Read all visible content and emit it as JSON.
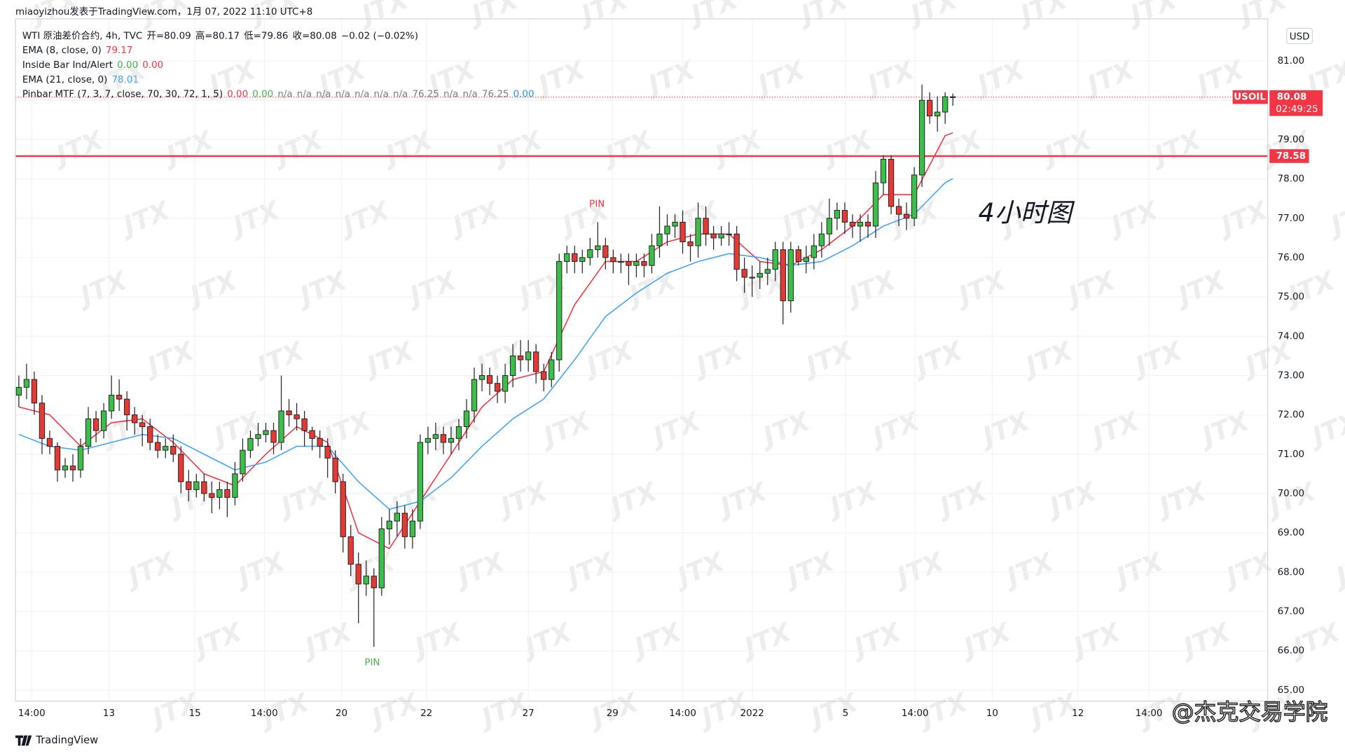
{
  "header": {
    "byline": "miaoyizhou发表于TradingView.com，1月 07, 2022 11:10 UTC+8",
    "footer": "TradingView",
    "watermark": "JTX",
    "credit": "@杰克交易学院"
  },
  "chart_data": {
    "type": "candlestick",
    "currency": "USD",
    "note": "4小时图",
    "grid": true,
    "up_color": "#3dbd4a",
    "down_color": "#e53935",
    "legend": [
      {
        "label": "WTI 原油差价合约, 4h, TVC",
        "items": [
          {
            "text": "开=80.09",
            "color": "#131722"
          },
          {
            "text": "高=80.17",
            "color": "#131722"
          },
          {
            "text": "低=79.86",
            "color": "#131722"
          },
          {
            "text": "收=80.08",
            "color": "#131722"
          },
          {
            "text": "−0.02 (−0.02%)",
            "color": "#131722"
          }
        ]
      },
      {
        "series": 0
      },
      {
        "label": "Inside Bar Ind/Alert",
        "items": [
          {
            "text": "0.00",
            "color": "#4caf50"
          },
          {
            "text": "0.00",
            "color": "#f23645"
          }
        ]
      },
      {
        "series": 1
      },
      {
        "label": "Pinbar MTF (7, 3, 7, close, 70, 30, 72, 1, 5)",
        "items": [
          {
            "text": "0.00",
            "color": "#f23645"
          },
          {
            "text": "0.00",
            "color": "#4caf50"
          },
          {
            "text": "n/a",
            "color": "#787b86"
          },
          {
            "text": "n/a",
            "color": "#787b86"
          },
          {
            "text": "n/a",
            "color": "#787b86"
          },
          {
            "text": "n/a",
            "color": "#787b86"
          },
          {
            "text": "n/a",
            "color": "#787b86"
          },
          {
            "text": "n/a",
            "color": "#787b86"
          },
          {
            "text": "n/a",
            "color": "#787b86"
          },
          {
            "text": "76.25",
            "color": "#787b86"
          },
          {
            "text": "n/a",
            "color": "#787b86"
          },
          {
            "text": "n/a",
            "color": "#787b86"
          },
          {
            "text": "76.25",
            "color": "#787b86"
          },
          {
            "text": "0.00",
            "color": "#2196f3"
          }
        ]
      }
    ],
    "open": [
      72.5,
      72.7,
      72.9,
      72.3,
      71.4,
      71.2,
      70.6,
      70.7,
      70.6,
      71.2,
      71.9,
      71.6,
      72.1,
      72.5,
      72.4,
      72.0,
      71.8,
      71.7,
      71.3,
      71.1,
      71.2,
      71.0,
      70.3,
      70.1,
      70.3,
      70.0,
      69.9,
      70.1,
      69.9,
      70.5,
      71.1,
      71.4,
      71.5,
      71.6,
      71.3,
      72.1,
      72.0,
      71.9,
      71.6,
      71.4,
      71.2,
      70.9,
      70.3,
      68.9,
      68.2,
      67.7,
      67.9,
      67.6,
      69.1,
      69.3,
      69.5,
      68.9,
      69.3,
      71.3,
      71.4,
      71.5,
      71.3,
      71.4,
      71.7,
      72.1,
      72.9,
      73.0,
      72.8,
      72.6,
      73.0,
      73.5,
      73.4,
      73.6,
      73.1,
      72.9,
      73.4,
      75.9,
      76.1,
      75.9,
      76.0,
      76.2,
      76.3,
      76.0,
      75.9,
      75.9,
      75.8,
      75.9,
      75.8,
      76.3,
      76.6,
      76.8,
      76.9,
      76.4,
      76.3,
      77.0,
      76.6,
      76.5,
      76.6,
      76.6,
      75.7,
      75.5,
      75.5,
      75.6,
      75.7,
      76.2,
      74.9,
      76.2,
      75.9,
      76.0,
      76.3,
      76.6,
      77.0,
      77.2,
      76.9,
      76.8,
      76.9,
      76.8,
      77.9,
      78.5,
      77.3,
      77.1,
      77.0,
      78.1,
      80.0,
      79.6,
      79.7,
      80.09
    ],
    "high": [
      73.0,
      73.3,
      73.1,
      72.5,
      71.6,
      71.3,
      70.9,
      71.0,
      71.4,
      72.2,
      72.1,
      72.3,
      73.0,
      72.9,
      72.6,
      72.2,
      72.0,
      71.9,
      71.5,
      71.4,
      71.5,
      71.2,
      70.6,
      70.5,
      70.5,
      70.3,
      70.3,
      70.3,
      70.8,
      71.4,
      71.6,
      71.8,
      71.8,
      71.8,
      73.0,
      72.4,
      72.3,
      72.1,
      71.7,
      71.6,
      71.4,
      71.1,
      70.5,
      69.2,
      68.5,
      68.3,
      68.1,
      69.4,
      69.6,
      69.8,
      69.7,
      69.6,
      71.5,
      71.7,
      71.8,
      71.7,
      71.7,
      71.9,
      72.4,
      73.2,
      73.3,
      73.2,
      73.0,
      73.3,
      73.8,
      73.9,
      73.9,
      73.8,
      73.3,
      73.6,
      76.1,
      76.3,
      76.3,
      76.2,
      76.5,
      76.9,
      76.5,
      76.2,
      76.1,
      76.1,
      76.1,
      76.1,
      76.6,
      77.3,
      77.1,
      77.1,
      77.2,
      76.6,
      77.4,
      77.3,
      76.8,
      76.8,
      76.9,
      76.8,
      76.0,
      75.8,
      75.9,
      76.0,
      76.4,
      76.4,
      76.4,
      76.3,
      76.3,
      76.6,
      76.9,
      77.5,
      77.4,
      77.4,
      77.1,
      77.1,
      77.1,
      78.2,
      78.6,
      78.6,
      77.5,
      77.4,
      78.3,
      80.4,
      80.2,
      80.1,
      80.2,
      80.17
    ],
    "low": [
      72.2,
      72.4,
      72.0,
      71.0,
      71.0,
      70.3,
      70.4,
      70.3,
      70.4,
      71.0,
      71.3,
      71.4,
      71.9,
      72.1,
      71.6,
      71.5,
      71.2,
      71.1,
      70.9,
      70.9,
      70.8,
      70.0,
      69.8,
      69.9,
      69.8,
      69.5,
      69.6,
      69.4,
      69.7,
      70.3,
      70.9,
      71.2,
      71.3,
      71.0,
      71.1,
      71.7,
      71.6,
      71.2,
      71.1,
      70.9,
      70.4,
      70.0,
      68.5,
      67.9,
      66.7,
      67.4,
      66.1,
      67.4,
      68.7,
      68.9,
      68.6,
      68.6,
      69.1,
      71.0,
      71.1,
      71.0,
      71.0,
      71.1,
      71.4,
      71.8,
      72.6,
      72.5,
      72.3,
      72.3,
      72.7,
      73.1,
      73.1,
      72.8,
      72.6,
      72.7,
      73.1,
      75.6,
      75.6,
      75.6,
      75.8,
      76.0,
      75.7,
      75.6,
      75.6,
      75.3,
      75.5,
      75.5,
      75.6,
      76.0,
      76.3,
      76.5,
      76.1,
      75.9,
      76.0,
      76.3,
      76.2,
      76.3,
      76.3,
      75.4,
      75.1,
      75.0,
      75.2,
      75.3,
      75.4,
      74.3,
      74.6,
      75.8,
      75.6,
      75.7,
      76.0,
      76.3,
      76.7,
      76.6,
      76.5,
      76.4,
      76.5,
      76.5,
      77.6,
      77.1,
      76.8,
      76.7,
      76.8,
      77.8,
      79.4,
      79.2,
      79.4,
      79.86
    ],
    "close": [
      72.7,
      72.9,
      72.3,
      71.4,
      71.2,
      70.6,
      70.7,
      70.6,
      71.2,
      71.9,
      71.6,
      72.1,
      72.5,
      72.4,
      72.0,
      71.8,
      71.7,
      71.3,
      71.1,
      71.2,
      71.0,
      70.3,
      70.1,
      70.3,
      70.0,
      69.9,
      70.1,
      69.9,
      70.5,
      71.1,
      71.4,
      71.5,
      71.6,
      71.3,
      72.1,
      72.0,
      71.9,
      71.6,
      71.4,
      71.2,
      70.9,
      70.3,
      68.9,
      68.2,
      67.7,
      67.9,
      67.6,
      69.1,
      69.3,
      69.5,
      68.9,
      69.3,
      71.3,
      71.4,
      71.5,
      71.3,
      71.4,
      71.7,
      72.1,
      72.9,
      73.0,
      72.8,
      72.6,
      73.0,
      73.5,
      73.4,
      73.6,
      73.1,
      72.9,
      73.4,
      75.9,
      76.1,
      75.9,
      76.0,
      76.2,
      76.3,
      76.0,
      75.9,
      75.9,
      75.8,
      75.9,
      75.8,
      76.3,
      76.6,
      76.8,
      76.9,
      76.4,
      76.3,
      77.0,
      76.6,
      76.5,
      76.6,
      76.6,
      75.7,
      75.5,
      75.5,
      75.6,
      75.7,
      76.2,
      74.9,
      76.2,
      75.9,
      76.0,
      76.3,
      76.6,
      77.0,
      77.2,
      76.9,
      76.8,
      76.9,
      76.8,
      77.9,
      78.5,
      77.3,
      77.1,
      77.0,
      78.1,
      80.0,
      79.6,
      79.7,
      80.09,
      80.08
    ],
    "series": [
      {
        "name": "EMA (8, close, 0)",
        "color": "#f23645",
        "x": [
          0,
          4,
          8,
          12,
          16,
          20,
          24,
          28,
          32,
          36,
          40,
          44,
          48,
          52,
          56,
          60,
          64,
          68,
          72,
          76,
          80,
          84,
          88,
          92,
          96,
          100,
          104,
          108,
          112,
          116,
          120,
          121
        ],
        "values": [
          72.2,
          72.0,
          71.2,
          71.8,
          71.9,
          71.3,
          70.5,
          70.2,
          71.0,
          71.7,
          71.3,
          69.0,
          68.6,
          69.8,
          71.0,
          72.2,
          72.9,
          73.1,
          74.8,
          75.9,
          75.9,
          76.4,
          76.6,
          76.6,
          75.9,
          75.8,
          76.2,
          76.8,
          77.6,
          77.6,
          79.1,
          79.17
        ]
      },
      {
        "name": "EMA (21, close, 0)",
        "color": "#42a5f5",
        "x": [
          0,
          4,
          8,
          12,
          16,
          20,
          24,
          28,
          32,
          36,
          40,
          44,
          48,
          52,
          56,
          60,
          64,
          68,
          72,
          76,
          80,
          84,
          88,
          92,
          96,
          100,
          104,
          108,
          112,
          116,
          120,
          121
        ],
        "values": [
          71.5,
          71.2,
          71.1,
          71.3,
          71.5,
          71.4,
          71.0,
          70.6,
          70.8,
          71.2,
          71.2,
          70.3,
          69.6,
          69.8,
          70.4,
          71.2,
          71.9,
          72.4,
          73.4,
          74.5,
          75.1,
          75.6,
          75.9,
          76.1,
          76.0,
          75.8,
          75.9,
          76.3,
          76.8,
          77.1,
          77.9,
          78.01
        ]
      }
    ],
    "hline": {
      "value": 78.58,
      "color": "#f23645"
    },
    "last_price": {
      "symbol": "USOIL",
      "value": 80.08,
      "countdown": "02:49:25",
      "color": "#f23645"
    },
    "pins": [
      "PIN",
      "PIN"
    ],
    "xlim": [
      -0.44,
      161.8
    ],
    "xticks": [
      {
        "value": 1.67,
        "label": "14:00"
      },
      {
        "value": 11.67,
        "label": "13"
      },
      {
        "value": 22.8,
        "label": "15"
      },
      {
        "value": 31.8,
        "label": "14:00"
      },
      {
        "value": 41.8,
        "label": "20"
      },
      {
        "value": 52.8,
        "label": "22"
      },
      {
        "value": 66.0,
        "label": "27"
      },
      {
        "value": 76.9,
        "label": "29"
      },
      {
        "value": 86.0,
        "label": "14:00"
      },
      {
        "value": 95.0,
        "label": "2022"
      },
      {
        "value": 107.1,
        "label": "5"
      },
      {
        "value": 116.1,
        "label": "14:00"
      },
      {
        "value": 126.1,
        "label": "10"
      },
      {
        "value": 137.2,
        "label": "12"
      },
      {
        "value": 146.4,
        "label": "14:00"
      }
    ],
    "ylim": [
      64.72,
      82.07
    ],
    "yticks": [
      {
        "value": 65,
        "label": "65.00"
      },
      {
        "value": 66,
        "label": "66.00"
      },
      {
        "value": 67,
        "label": "67.00"
      },
      {
        "value": 68,
        "label": "68.00"
      },
      {
        "value": 69,
        "label": "69.00"
      },
      {
        "value": 70,
        "label": "70.00"
      },
      {
        "value": 71,
        "label": "71.00"
      },
      {
        "value": 72,
        "label": "72.00"
      },
      {
        "value": 73,
        "label": "73.00"
      },
      {
        "value": 74,
        "label": "74.00"
      },
      {
        "value": 75,
        "label": "75.00"
      },
      {
        "value": 76,
        "label": "76.00"
      },
      {
        "value": 77,
        "label": "77.00"
      },
      {
        "value": 78,
        "label": "78.00"
      },
      {
        "value": 79,
        "label": "79.00"
      },
      {
        "value": 80,
        "label": "80.00"
      },
      {
        "value": 81,
        "label": "81.00"
      }
    ]
  }
}
